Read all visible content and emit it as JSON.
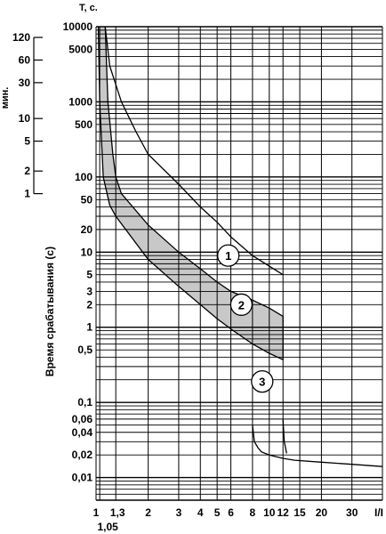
{
  "chart_data": {
    "type": "line",
    "x_scale": "log",
    "y_scale": "log",
    "x_unit": "I/In",
    "xlabel": "I/I",
    "ylabel": "Время срабатывания (с)",
    "y_axis_title": "T, c.",
    "minutes_axis_title": "мин.",
    "xlim": [
      1,
      45
    ],
    "ylim": [
      0.005,
      10000
    ],
    "x_ticks": [
      {
        "value": 1,
        "label": "1"
      },
      {
        "value": 1.05,
        "label": "1,05"
      },
      {
        "value": 1.3,
        "label": "1,3"
      },
      {
        "value": 2,
        "label": "2"
      },
      {
        "value": 3,
        "label": "3"
      },
      {
        "value": 4,
        "label": "4"
      },
      {
        "value": 5,
        "label": "5"
      },
      {
        "value": 6,
        "label": "6"
      },
      {
        "value": 8,
        "label": "8"
      },
      {
        "value": 10,
        "label": "10"
      },
      {
        "value": 12,
        "label": "12"
      },
      {
        "value": 15,
        "label": "15"
      },
      {
        "value": 20,
        "label": "20"
      },
      {
        "value": 30,
        "label": "30"
      }
    ],
    "y_ticks": [
      {
        "value": 10000,
        "label": "10000"
      },
      {
        "value": 5000,
        "label": "5000"
      },
      {
        "value": 1000,
        "label": "1000"
      },
      {
        "value": 500,
        "label": "500"
      },
      {
        "value": 100,
        "label": "100"
      },
      {
        "value": 50,
        "label": "50"
      },
      {
        "value": 20,
        "label": "20"
      },
      {
        "value": 10,
        "label": "10"
      },
      {
        "value": 5,
        "label": "5"
      },
      {
        "value": 3,
        "label": "3"
      },
      {
        "value": 2,
        "label": "2"
      },
      {
        "value": 1,
        "label": "1"
      },
      {
        "value": 0.5,
        "label": "0,5"
      },
      {
        "value": 0.1,
        "label": "0,1"
      },
      {
        "value": 0.06,
        "label": "0,06"
      },
      {
        "value": 0.04,
        "label": "0,04"
      },
      {
        "value": 0.02,
        "label": "0,02"
      },
      {
        "value": 0.01,
        "label": "0,01"
      }
    ],
    "minute_ticks": [
      {
        "value": 120,
        "label": "120"
      },
      {
        "value": 60,
        "label": "60"
      },
      {
        "value": 30,
        "label": "30"
      },
      {
        "value": 10,
        "label": "10"
      },
      {
        "value": 5,
        "label": "5"
      },
      {
        "value": 2,
        "label": "2"
      },
      {
        "value": 1,
        "label": "1"
      }
    ],
    "series": [
      {
        "label": "1",
        "kind": "thermal-max-line",
        "points": [
          [
            1.13,
            10000
          ],
          [
            1.2,
            3000
          ],
          [
            1.4,
            1000
          ],
          [
            1.7,
            400
          ],
          [
            2,
            200
          ],
          [
            3,
            80
          ],
          [
            4,
            40
          ],
          [
            5,
            25
          ],
          [
            6,
            16
          ],
          [
            8,
            9
          ],
          [
            10,
            6.5
          ],
          [
            12,
            5
          ]
        ]
      },
      {
        "label": "2",
        "kind": "thermal-band",
        "upper": [
          [
            1.13,
            10000
          ],
          [
            1.17,
            1000
          ],
          [
            1.25,
            200
          ],
          [
            1.3,
            100
          ],
          [
            1.4,
            60
          ],
          [
            2,
            23
          ],
          [
            3,
            10
          ],
          [
            4,
            6
          ],
          [
            5,
            4
          ],
          [
            6,
            3
          ],
          [
            8,
            2.3
          ],
          [
            10,
            1.8
          ],
          [
            12,
            1.4
          ]
        ],
        "lower": [
          [
            1.03,
            10000
          ],
          [
            1.05,
            1000
          ],
          [
            1.1,
            100
          ],
          [
            1.2,
            42
          ],
          [
            1.3,
            30
          ],
          [
            2,
            8
          ],
          [
            3,
            3.5
          ],
          [
            4,
            2
          ],
          [
            5,
            1.3
          ],
          [
            6,
            0.95
          ],
          [
            8,
            0.6
          ],
          [
            10,
            0.45
          ],
          [
            12,
            0.37
          ]
        ],
        "label_at": [
          6.9,
          2.0
        ]
      },
      {
        "label": "3",
        "kind": "magnetic-trip",
        "segments": [
          [
            [
              8,
              0.05
            ],
            [
              8.2,
              0.03
            ],
            [
              8.6,
              0.025
            ],
            [
              9,
              0.022
            ],
            [
              10,
              0.02
            ],
            [
              12,
              0.018
            ],
            [
              14,
              0.017
            ],
            [
              20,
              0.016
            ],
            [
              30,
              0.015
            ],
            [
              45,
              0.014
            ]
          ],
          [
            [
              12,
              0.06
            ],
            [
              12.2,
              0.03
            ],
            [
              12.6,
              0.021
            ]
          ]
        ],
        "label_at": [
          9.1,
          0.19
        ]
      }
    ],
    "curve1_label_at": [
      5.8,
      9.0
    ],
    "grid": true
  }
}
